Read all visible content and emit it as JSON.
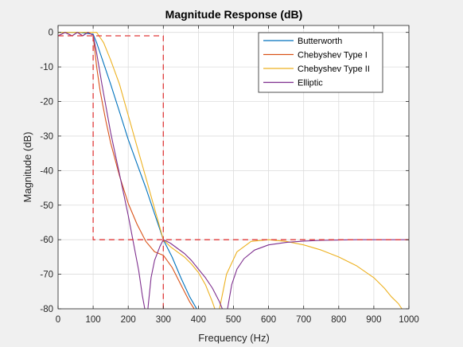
{
  "chart_data": {
    "type": "line",
    "title": "Magnitude Response (dB)",
    "xlabel": "Frequency (Hz)",
    "ylabel": "Magnitude (dB)",
    "xlim": [
      0,
      1000
    ],
    "ylim": [
      -80,
      2
    ],
    "xticks": [
      "0",
      "100",
      "200",
      "300",
      "400",
      "500",
      "600",
      "700",
      "800",
      "900",
      "1000"
    ],
    "yticks": [
      "0",
      "-10",
      "-20",
      "-30",
      "-40",
      "-50",
      "-60",
      "-70",
      "-80"
    ],
    "grid": true,
    "legend_position": "top-right",
    "series": [
      {
        "name": "Butterworth",
        "color": "#0072BD",
        "x": [
          0,
          60,
          100,
          110,
          125,
          150,
          175,
          200,
          225,
          250,
          275,
          300,
          325,
          350,
          375,
          395
        ],
        "y": [
          0,
          0,
          -0.5,
          -3,
          -7.5,
          -15,
          -23,
          -31,
          -38,
          -45,
          -52.5,
          -60,
          -65,
          -71,
          -76.5,
          -80
        ]
      },
      {
        "name": "Chebyshev Type I",
        "color": "#D95319",
        "x": [
          0,
          20,
          40,
          55,
          70,
          85,
          100,
          110,
          120,
          135,
          150,
          175,
          200,
          225,
          250,
          275,
          300,
          325,
          350,
          375,
          388
        ],
        "y": [
          -1,
          0,
          -1,
          0,
          -1,
          0,
          -0.8,
          -10,
          -17,
          -25,
          -32,
          -41.5,
          -49.5,
          -55.5,
          -60.5,
          -63.5,
          -64.5,
          -68,
          -73,
          -78,
          -80
        ]
      },
      {
        "name": "Chebyshev Type II",
        "color": "#EDB120",
        "x": [
          0,
          100,
          110,
          130,
          150,
          175,
          200,
          225,
          250,
          275,
          300,
          320,
          340,
          360,
          380,
          400,
          420,
          440,
          450,
          460,
          480,
          510,
          550,
          600,
          650,
          700,
          750,
          800,
          850,
          900,
          930,
          950,
          970,
          980
        ],
        "y": [
          0,
          0,
          0,
          -3,
          -8,
          -15,
          -24,
          -33,
          -42,
          -51,
          -60,
          -62,
          -63.5,
          -65,
          -67,
          -69.5,
          -73,
          -78,
          -81,
          -80,
          -70,
          -63.5,
          -60.5,
          -60,
          -60.5,
          -61.5,
          -63,
          -65,
          -67.5,
          -71,
          -74,
          -76.5,
          -78.5,
          -80
        ]
      },
      {
        "name": "Elliptic",
        "color": "#7E2F8E",
        "x": [
          0,
          20,
          40,
          55,
          70,
          85,
          100,
          110,
          125,
          150,
          175,
          200,
          215,
          230,
          240,
          248,
          253,
          256,
          265,
          275,
          290,
          300,
          310,
          320,
          340,
          360,
          380,
          400,
          420,
          440,
          460,
          470,
          478,
          483,
          495,
          510,
          530,
          560,
          600,
          650,
          700,
          750,
          800,
          850,
          900,
          950,
          1000
        ],
        "y": [
          -1,
          0,
          -1,
          0,
          -1,
          0,
          -0.8,
          -6,
          -15,
          -29,
          -41,
          -53,
          -61,
          -69,
          -76,
          -80.5,
          -81,
          -80,
          -71,
          -66,
          -62,
          -60,
          -60.5,
          -61,
          -62.5,
          -64,
          -66,
          -68.5,
          -71,
          -74,
          -78,
          -80.5,
          -81,
          -80,
          -73,
          -68.5,
          -65.5,
          -63,
          -61.5,
          -60.8,
          -60.4,
          -60.2,
          -60.1,
          -60,
          -60,
          -60,
          -60
        ]
      },
      {
        "name": "",
        "color": "#E03A3A",
        "dashed": true,
        "x": [
          0,
          300,
          300
        ],
        "y": [
          -1,
          -1,
          -81
        ]
      },
      {
        "name": "",
        "color": "#E03A3A",
        "dashed": true,
        "x": [
          100,
          100,
          1000
        ],
        "y": [
          -1,
          -60,
          -60
        ]
      }
    ]
  }
}
